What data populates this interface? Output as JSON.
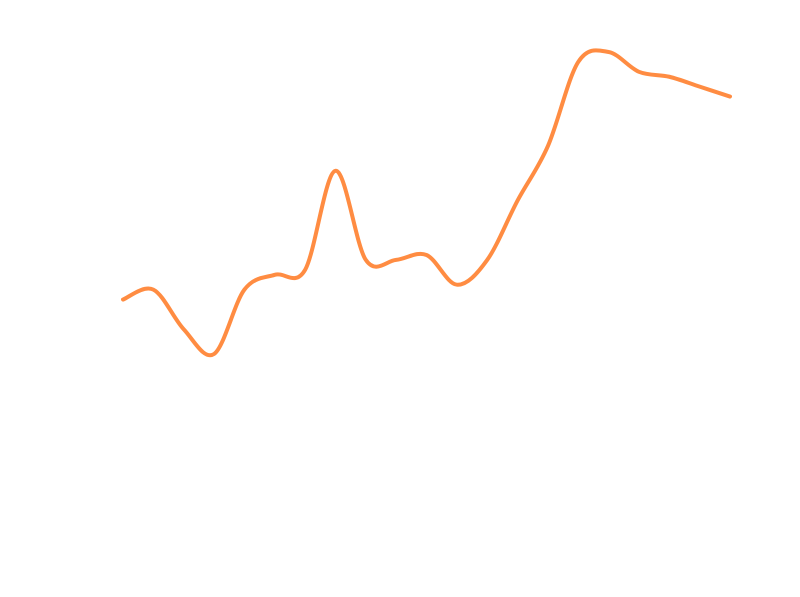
{
  "chart_data": {
    "type": "line",
    "title": "",
    "xlabel": "",
    "ylabel": "",
    "grid": false,
    "legend": "none",
    "axes_visible": false,
    "line_style": "smooth",
    "color": "#ff8c42",
    "x": [
      0,
      1,
      2,
      3,
      4,
      5,
      6,
      7,
      8,
      9,
      10,
      11,
      12,
      13,
      14,
      15,
      16,
      17,
      18,
      19,
      20
    ],
    "xlim": [
      0,
      20
    ],
    "ylim": [
      0,
      1
    ],
    "series": [
      {
        "values": [
          0.5,
          0.52,
          0.44,
          0.39,
          0.52,
          0.55,
          0.56,
          0.76,
          0.58,
          0.58,
          0.59,
          0.53,
          0.58,
          0.7,
          0.81,
          0.98,
          1.0,
          0.96,
          0.95,
          0.93,
          0.91
        ]
      }
    ]
  }
}
